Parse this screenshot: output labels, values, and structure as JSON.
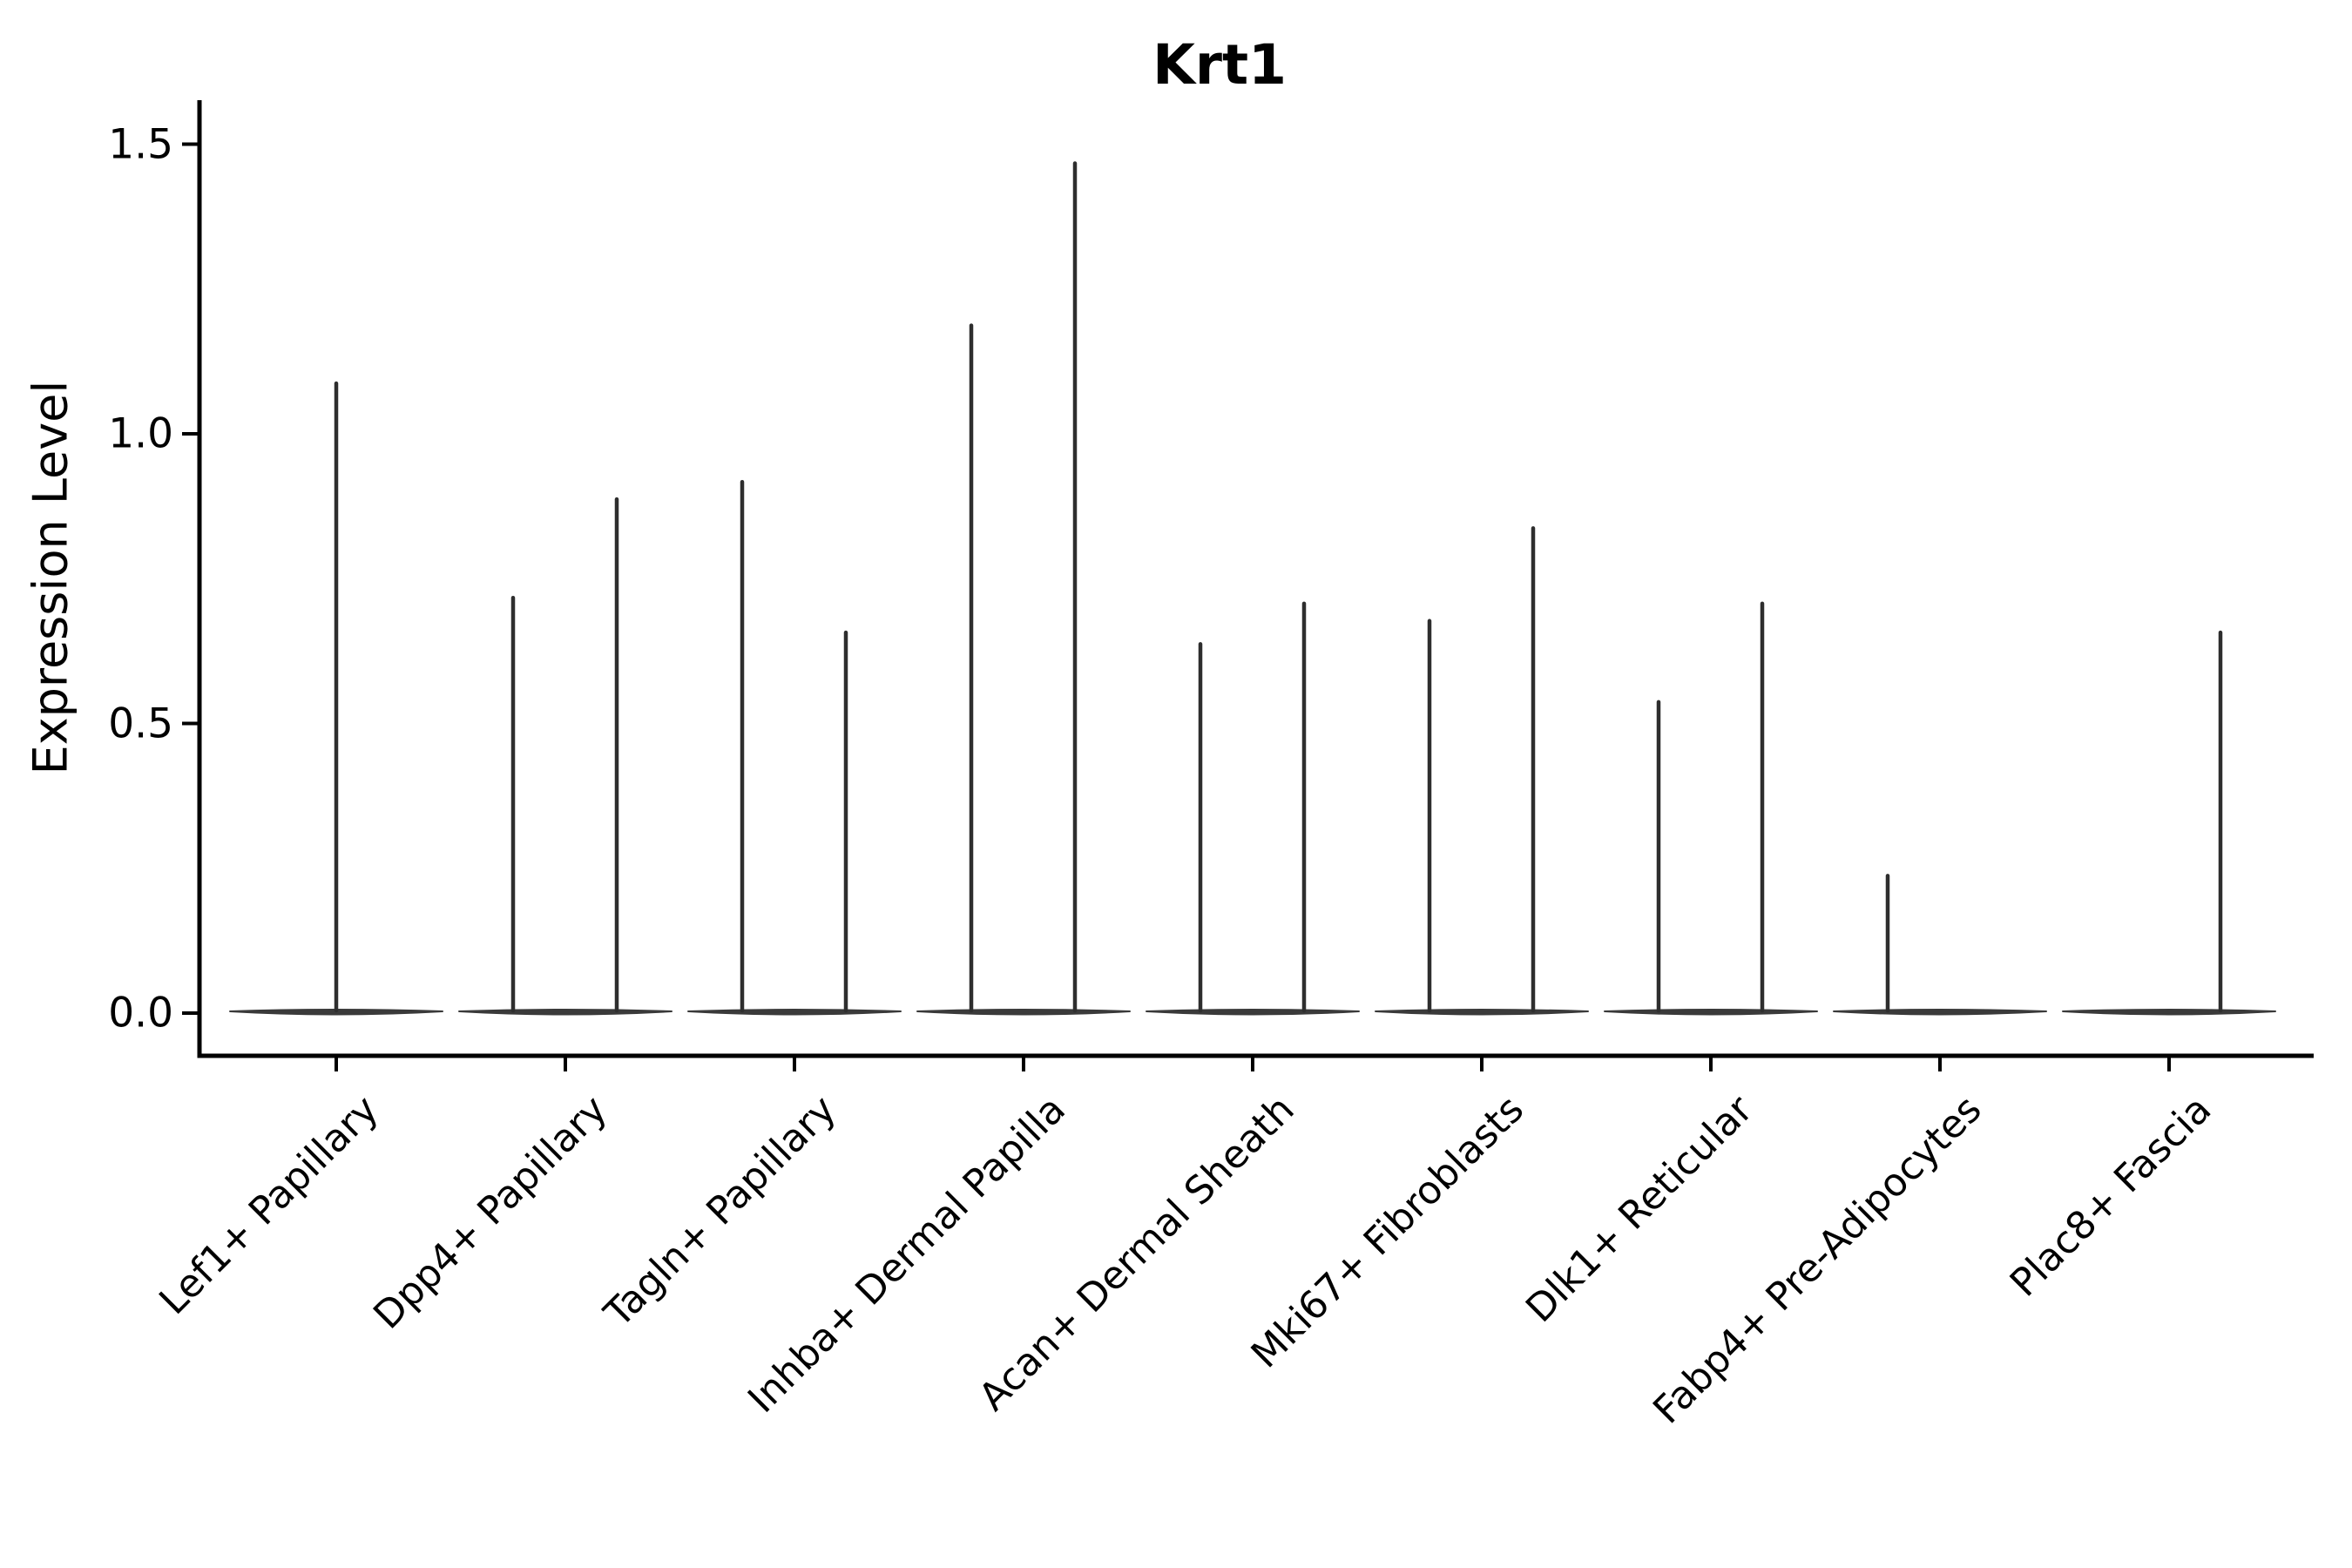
{
  "chart_data": {
    "type": "violin",
    "title": "Krt1",
    "ylabel": "Expression Level",
    "xlabel": "",
    "yticks": [
      "0.0",
      "0.5",
      "1.0",
      "1.5"
    ],
    "ylim": [
      0.0,
      1.5
    ],
    "grid": false,
    "legend": "none",
    "description": "Violin plot of Krt1 expression per cell type; each violin is a flat mass at 0 with thin spikes rising to the maximum expression values.",
    "baseline_value": 0.0,
    "categories": [
      {
        "label": "Lef1+ Papillary",
        "violins": [
          {
            "position": "center",
            "max": 1.09
          }
        ]
      },
      {
        "label": "Dpp4+ Papillary",
        "violins": [
          {
            "position": "left",
            "max": 0.72
          },
          {
            "position": "right",
            "max": 0.89
          }
        ]
      },
      {
        "label": "Tagln+ Papillary",
        "violins": [
          {
            "position": "left",
            "max": 0.92
          },
          {
            "position": "right",
            "max": 0.66
          }
        ]
      },
      {
        "label": "Inhba+ Dermal Papilla",
        "violins": [
          {
            "position": "left",
            "max": 1.19
          },
          {
            "position": "right",
            "max": 1.47
          }
        ]
      },
      {
        "label": "Acan+ Dermal Sheath",
        "violins": [
          {
            "position": "left",
            "max": 0.64
          },
          {
            "position": "right",
            "max": 0.71
          }
        ]
      },
      {
        "label": "Mki67+ Fibroblasts",
        "violins": [
          {
            "position": "left",
            "max": 0.68
          },
          {
            "position": "right",
            "max": 0.84
          }
        ]
      },
      {
        "label": "Dlk1+ Reticular",
        "violins": [
          {
            "position": "left",
            "max": 0.54
          },
          {
            "position": "right",
            "max": 0.71
          }
        ]
      },
      {
        "label": "Fabp4+ Pre-Adipocytes",
        "violins": [
          {
            "position": "left",
            "max": 0.24
          }
        ]
      },
      {
        "label": "Plac8+ Fascia",
        "violins": [
          {
            "position": "right",
            "max": 0.66
          }
        ]
      }
    ],
    "colors": {
      "axis": "#000000",
      "text": "#000000",
      "violin_body": "#3a3a3a",
      "violin_spike": "#2e2e2e",
      "background": "#ffffff"
    }
  }
}
